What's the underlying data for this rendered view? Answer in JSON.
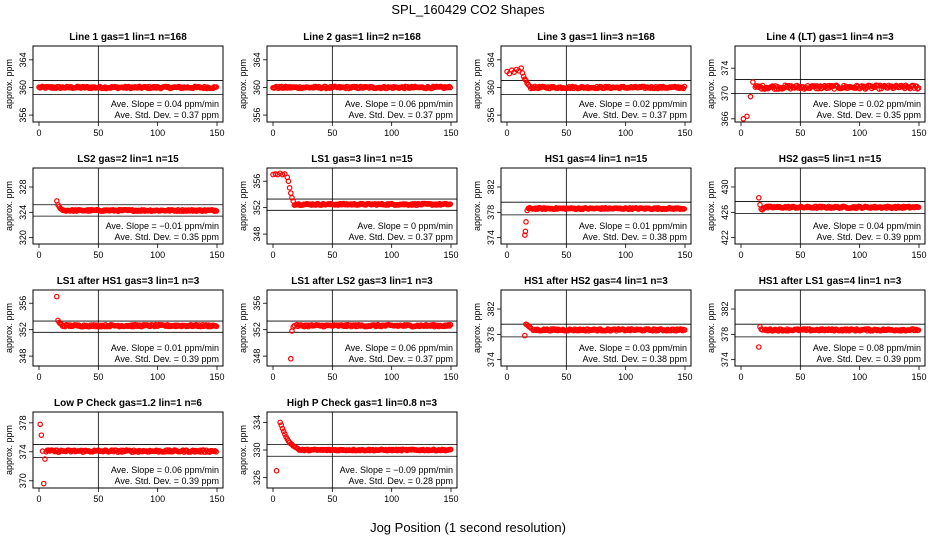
{
  "title": "SPL_160429  CO2 Shapes",
  "xlabel": "Jog Position (1 second resolution)",
  "colors": {
    "points": "#ff0000",
    "axes": "#000000",
    "background": "#ffffff"
  },
  "chart_data": [
    {
      "type": "scatter",
      "title": "Line 1 gas=1 lin=1 n=168",
      "ylabel": "approx. ppm",
      "xlim": [
        0,
        150
      ],
      "ylim": [
        355,
        366
      ],
      "xticks": [
        0,
        50,
        100,
        150
      ],
      "yticks": [
        356,
        360,
        364
      ],
      "ref_lines": [
        361,
        359
      ],
      "vline": 50,
      "slope_text": "Ave. Slope = 0.04  ppm/min",
      "sd_text": "Ave. Std. Dev. = 0.37  ppm",
      "series": {
        "x_start": 0,
        "x_end": 150,
        "plateau": 360,
        "noise": 0.15,
        "early": []
      }
    },
    {
      "type": "scatter",
      "title": "Line 2 gas=1 lin=2 n=168",
      "ylabel": "approx. ppm",
      "xlim": [
        0,
        150
      ],
      "ylim": [
        355,
        366
      ],
      "xticks": [
        0,
        50,
        100,
        150
      ],
      "yticks": [
        356,
        360,
        364
      ],
      "ref_lines": [
        361,
        359
      ],
      "vline": 50,
      "slope_text": "Ave. Slope = 0.06  ppm/min",
      "sd_text": "Ave. Std. Dev. = 0.37  ppm",
      "series": {
        "x_start": 0,
        "x_end": 150,
        "plateau": 360,
        "noise": 0.15,
        "early": []
      }
    },
    {
      "type": "scatter",
      "title": "Line 3 gas=1 lin=3 n=168",
      "ylabel": "approx. ppm",
      "xlim": [
        0,
        150
      ],
      "ylim": [
        355,
        366
      ],
      "xticks": [
        0,
        50,
        100,
        150
      ],
      "yticks": [
        356,
        360,
        364
      ],
      "ref_lines": [
        361,
        359
      ],
      "vline": 50,
      "slope_text": "Ave. Slope = 0.02  ppm/min",
      "sd_text": "Ave. Std. Dev. = 0.37  ppm",
      "series": {
        "x_start": 20,
        "x_end": 150,
        "plateau": 360,
        "noise": 0.15,
        "early": [
          [
            0,
            362.3
          ],
          [
            2,
            362
          ],
          [
            4,
            362.5
          ],
          [
            6,
            362.2
          ],
          [
            8,
            362.6
          ],
          [
            10,
            362.4
          ],
          [
            12,
            362.8
          ],
          [
            13,
            362.1
          ],
          [
            14,
            361.6
          ],
          [
            15,
            361.2
          ],
          [
            16,
            361
          ],
          [
            17,
            360.6
          ],
          [
            18,
            360.4
          ],
          [
            19,
            360.2
          ]
        ]
      }
    },
    {
      "type": "scatter",
      "title": "Line 4 (LT) gas=1 lin=4 n=3",
      "ylabel": "approx. ppm",
      "xlim": [
        0,
        150
      ],
      "ylim": [
        365.5,
        377.5
      ],
      "xticks": [
        0,
        50,
        100,
        150
      ],
      "yticks": [
        366,
        370,
        374
      ],
      "ref_lines": [
        372.2,
        370
      ],
      "vline": 50,
      "slope_text": "Ave. Slope = 0.02  ppm/min",
      "sd_text": "Ave. Std. Dev. = 0.35  ppm",
      "series": {
        "x_start": 12,
        "x_end": 150,
        "plateau": 371,
        "noise": 0.3,
        "early": [
          [
            2,
            366
          ],
          [
            5,
            366.4
          ],
          [
            8,
            369.5
          ],
          [
            10,
            371.8
          ]
        ]
      }
    },
    {
      "type": "scatter",
      "title": "LS2 gas=2 lin=1 n=15",
      "ylabel": "approx. ppm",
      "xlim": [
        0,
        150
      ],
      "ylim": [
        319,
        331
      ],
      "xticks": [
        0,
        50,
        100,
        150
      ],
      "yticks": [
        320,
        324,
        328
      ],
      "ref_lines": [
        325.2,
        323.4
      ],
      "vline": 50,
      "slope_text": "Ave. Slope = −0.01  ppm/min",
      "sd_text": "Ave. Std. Dev. = 0.35  ppm",
      "series": {
        "x_start": 20,
        "x_end": 150,
        "plateau": 324.3,
        "noise": 0.12,
        "early": [
          [
            15,
            325.8
          ],
          [
            16,
            325.2
          ],
          [
            17,
            324.9
          ],
          [
            18,
            324.6
          ],
          [
            19,
            324.5
          ]
        ]
      }
    },
    {
      "type": "scatter",
      "title": "LS1 gas=3 lin=1 n=15",
      "ylabel": "approx. ppm",
      "xlim": [
        0,
        150
      ],
      "ylim": [
        346.5,
        358
      ],
      "xticks": [
        0,
        50,
        100,
        150
      ],
      "yticks": [
        348,
        352,
        356
      ],
      "ref_lines": [
        353.3,
        351.6
      ],
      "vline": 50,
      "slope_text": "Ave. Slope = 0  ppm/min",
      "sd_text": "Ave. Std. Dev. = 0.37  ppm",
      "series": {
        "x_start": 18,
        "x_end": 150,
        "plateau": 352.5,
        "noise": 0.12,
        "early": [
          [
            0,
            357
          ],
          [
            2,
            357.1
          ],
          [
            4,
            357
          ],
          [
            6,
            357.2
          ],
          [
            8,
            357
          ],
          [
            10,
            357.1
          ],
          [
            12,
            356.6
          ],
          [
            13,
            356
          ],
          [
            14,
            355
          ],
          [
            15,
            354.2
          ],
          [
            16,
            353.5
          ],
          [
            17,
            353
          ]
        ]
      }
    },
    {
      "type": "scatter",
      "title": "HS1 gas=4 lin=1 n=15",
      "ylabel": "approx. ppm",
      "xlim": [
        0,
        150
      ],
      "ylim": [
        373,
        385
      ],
      "xticks": [
        0,
        50,
        100,
        150
      ],
      "yticks": [
        374,
        378,
        382
      ],
      "ref_lines": [
        379.6,
        377.6
      ],
      "vline": 50,
      "slope_text": "Ave. Slope = 0.01  ppm/min",
      "sd_text": "Ave. Std. Dev. = 0.38  ppm",
      "series": {
        "x_start": 18,
        "x_end": 150,
        "plateau": 378.6,
        "noise": 0.12,
        "early": [
          [
            15,
            374.4
          ],
          [
            15.5,
            375
          ],
          [
            16,
            376.5
          ],
          [
            17,
            378.3
          ]
        ]
      }
    },
    {
      "type": "scatter",
      "title": "HS2 gas=5 lin=1 n=15",
      "ylabel": "approx. ppm",
      "xlim": [
        0,
        150
      ],
      "ylim": [
        421,
        433
      ],
      "xticks": [
        0,
        50,
        100,
        150
      ],
      "yticks": [
        422,
        426,
        430
      ],
      "ref_lines": [
        427.7,
        425.8
      ],
      "vline": 50,
      "slope_text": "Ave. Slope = 0.04  ppm/min",
      "sd_text": "Ave. Std. Dev. = 0.39  ppm",
      "series": {
        "x_start": 20,
        "x_end": 150,
        "plateau": 426.8,
        "noise": 0.15,
        "early": [
          [
            15,
            428.3
          ],
          [
            16,
            427.2
          ],
          [
            17,
            426.5
          ],
          [
            18,
            426.4
          ],
          [
            19,
            426.6
          ]
        ]
      }
    },
    {
      "type": "scatter",
      "title": "LS1 after HS1 gas=3 lin=1 n=3",
      "ylabel": "approx. ppm",
      "xlim": [
        0,
        150
      ],
      "ylim": [
        346.5,
        358
      ],
      "xticks": [
        0,
        50,
        100,
        150
      ],
      "yticks": [
        348,
        352,
        356
      ],
      "ref_lines": [
        353.3,
        351.6
      ],
      "vline": 50,
      "slope_text": "Ave. Slope = 0.01  ppm/min",
      "sd_text": "Ave. Std. Dev. = 0.39  ppm",
      "series": {
        "x_start": 20,
        "x_end": 150,
        "plateau": 352.6,
        "noise": 0.15,
        "early": [
          [
            15,
            357
          ],
          [
            16,
            353.4
          ],
          [
            17,
            353.1
          ],
          [
            18,
            352.9
          ],
          [
            19,
            352.8
          ]
        ]
      }
    },
    {
      "type": "scatter",
      "title": "LS1 after LS2 gas=3 lin=1 n=3",
      "ylabel": "approx. ppm",
      "xlim": [
        0,
        150
      ],
      "ylim": [
        346.5,
        358
      ],
      "xticks": [
        0,
        50,
        100,
        150
      ],
      "yticks": [
        348,
        352,
        356
      ],
      "ref_lines": [
        353.3,
        351.6
      ],
      "vline": 50,
      "slope_text": "Ave. Slope = 0.06  ppm/min",
      "sd_text": "Ave. Std. Dev. = 0.37  ppm",
      "series": {
        "x_start": 20,
        "x_end": 150,
        "plateau": 352.6,
        "noise": 0.15,
        "early": [
          [
            15,
            347.6
          ],
          [
            16,
            351.8
          ],
          [
            17,
            352.4
          ],
          [
            18,
            352.6
          ]
        ]
      }
    },
    {
      "type": "scatter",
      "title": "HS1 after HS2 gas=4 lin=1 n=3",
      "ylabel": "approx. ppm",
      "xlim": [
        0,
        150
      ],
      "ylim": [
        373,
        385
      ],
      "xticks": [
        0,
        50,
        100,
        150
      ],
      "yticks": [
        374,
        378,
        382
      ],
      "ref_lines": [
        379.6,
        377.6
      ],
      "vline": 50,
      "slope_text": "Ave. Slope = 0.03  ppm/min",
      "sd_text": "Ave. Std. Dev. = 0.38  ppm",
      "series": {
        "x_start": 22,
        "x_end": 150,
        "plateau": 378.7,
        "noise": 0.15,
        "early": [
          [
            15,
            377.8
          ],
          [
            16,
            379.6
          ],
          [
            17,
            379.5
          ],
          [
            18,
            379.3
          ],
          [
            19,
            379.2
          ],
          [
            20,
            379
          ]
        ]
      }
    },
    {
      "type": "scatter",
      "title": "HS1 after LS1 gas=4 lin=1 n=3",
      "ylabel": "approx. ppm",
      "xlim": [
        0,
        150
      ],
      "ylim": [
        373,
        385
      ],
      "xticks": [
        0,
        50,
        100,
        150
      ],
      "yticks": [
        374,
        378,
        382
      ],
      "ref_lines": [
        379.6,
        377.6
      ],
      "vline": 50,
      "slope_text": "Ave. Slope = 0.08  ppm/min",
      "sd_text": "Ave. Std. Dev. = 0.39  ppm",
      "series": {
        "x_start": 20,
        "x_end": 150,
        "plateau": 378.7,
        "noise": 0.15,
        "early": [
          [
            15,
            376
          ],
          [
            16,
            379.2
          ],
          [
            17,
            378.8
          ],
          [
            18,
            378.7
          ]
        ]
      }
    },
    {
      "type": "scatter",
      "title": "Low P Check gas=1.2 lin=1 n=6",
      "ylabel": "approx. ppm",
      "xlim": [
        0,
        150
      ],
      "ylim": [
        369,
        379.5
      ],
      "xticks": [
        0,
        50,
        100,
        150
      ],
      "yticks": [
        370,
        374,
        378
      ],
      "ref_lines": [
        375,
        373.2
      ],
      "vline": 50,
      "slope_text": "Ave. Slope = 0.06  ppm/min",
      "sd_text": "Ave. Std. Dev. = 0.39  ppm",
      "series": {
        "x_start": 8,
        "x_end": 150,
        "plateau": 374.1,
        "noise": 0.15,
        "early": [
          [
            1,
            377.8
          ],
          [
            2,
            376.3
          ],
          [
            3,
            374.1
          ],
          [
            4,
            369.6
          ],
          [
            5,
            373
          ],
          [
            6,
            374
          ],
          [
            7,
            374.2
          ]
        ]
      }
    },
    {
      "type": "scatter",
      "title": "High P Check gas=1 lin=0.8 n=3",
      "ylabel": "approx. ppm",
      "xlim": [
        0,
        150
      ],
      "ylim": [
        324.5,
        335.5
      ],
      "xticks": [
        0,
        50,
        100,
        150
      ],
      "yticks": [
        326,
        330,
        334
      ],
      "ref_lines": [
        330.8,
        329.1
      ],
      "vline": 50,
      "slope_text": "Ave. Slope = −0.09  ppm/min",
      "sd_text": "Ave. Std. Dev. = 0.28  ppm",
      "series": {
        "x_start": 22,
        "x_end": 150,
        "plateau": 330,
        "noise": 0.1,
        "early": [
          [
            3,
            327
          ],
          [
            6,
            334
          ],
          [
            7,
            333.6
          ],
          [
            8,
            333.1
          ],
          [
            9,
            332.7
          ],
          [
            10,
            332.3
          ],
          [
            11,
            331.9
          ],
          [
            12,
            331.6
          ],
          [
            13,
            331.3
          ],
          [
            14,
            331.1
          ],
          [
            15,
            330.9
          ],
          [
            16,
            330.8
          ],
          [
            17,
            330.6
          ],
          [
            18,
            330.5
          ],
          [
            19,
            330.4
          ],
          [
            20,
            330.3
          ],
          [
            21,
            330.2
          ]
        ]
      }
    }
  ]
}
